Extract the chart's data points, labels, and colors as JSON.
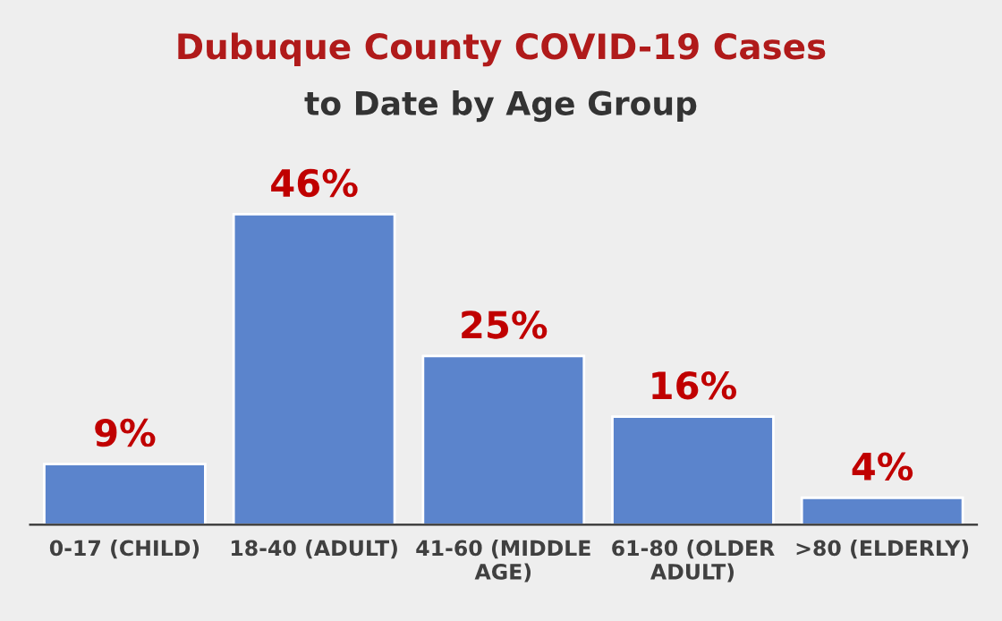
{
  "chart_data": {
    "type": "bar",
    "title": "Dubuque County COVID-19 Cases",
    "subtitle": "to Date by Age Group",
    "categories": [
      "0-17 (CHILD)",
      "18-40 (ADULT)",
      "41-60 (MIDDLE AGE)",
      "61-80 (OLDER ADULT)",
      ">80 (ELDERLY)"
    ],
    "values": [
      9,
      46,
      25,
      16,
      4
    ],
    "value_labels": [
      "9%",
      "46%",
      "25%",
      "16%",
      "4%"
    ],
    "color": "#5b84cc",
    "grid": false,
    "legend": false
  }
}
